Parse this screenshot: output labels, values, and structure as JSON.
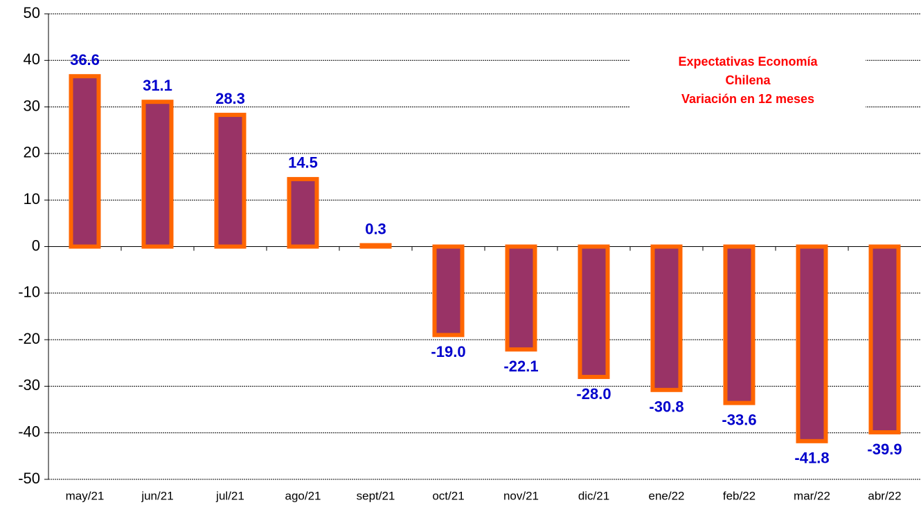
{
  "chart_data": {
    "type": "bar",
    "title": [
      "Expectativas Economía",
      "Chilena",
      "Variación  en 12 meses"
    ],
    "categories": [
      "may/21",
      "jun/21",
      "jul/21",
      "ago/21",
      "sept/21",
      "oct/21",
      "nov/21",
      "dic/21",
      "ene/22",
      "feb/22",
      "mar/22",
      "abr/22"
    ],
    "values": [
      36.6,
      31.1,
      28.3,
      14.5,
      0.3,
      -19.0,
      -22.1,
      -28.0,
      -30.8,
      -33.6,
      -41.8,
      -39.9
    ],
    "value_labels": [
      "36.6",
      "31.1",
      "28.3",
      "14.5",
      "0.3",
      "-19.0",
      "-22.1",
      "-28.0",
      "-30.8",
      "-33.6",
      "-41.8",
      "-39.9"
    ],
    "color": "#993366",
    "edge_color": "#ff6600",
    "label_color": "#0000cc",
    "title_color": "#ff0000",
    "ylim": [
      -50,
      50
    ],
    "yticks": [
      -50,
      -40,
      -30,
      -20,
      -10,
      0,
      10,
      20,
      30,
      40,
      50
    ],
    "grid": true
  }
}
